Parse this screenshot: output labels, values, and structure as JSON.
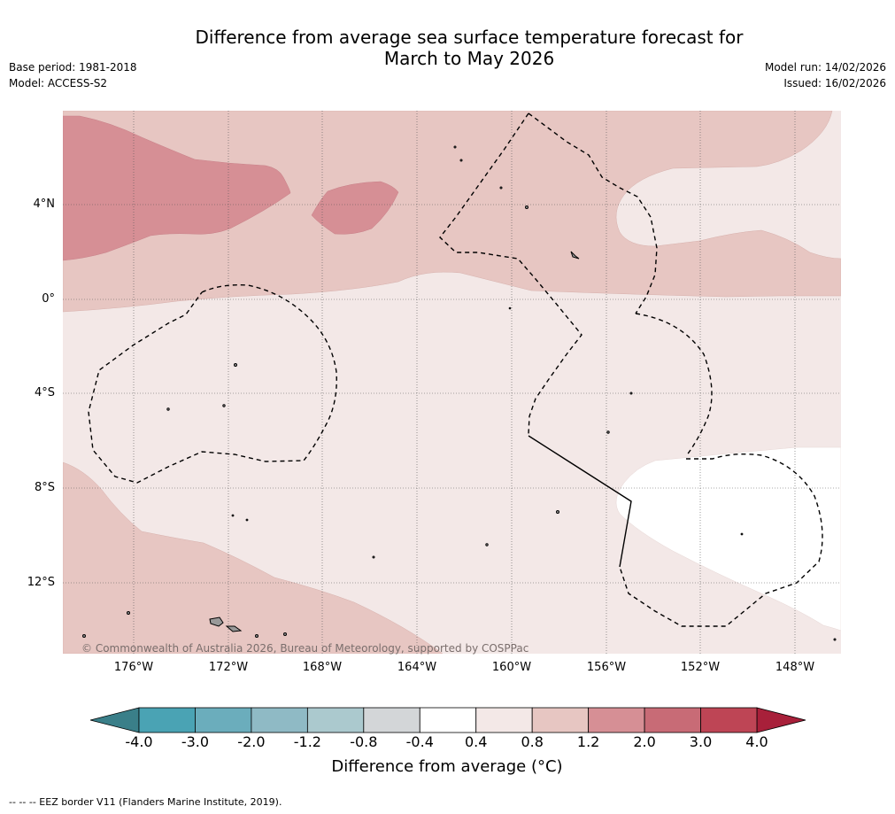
{
  "title_line1": "Difference from average sea surface temperature forecast for",
  "title_line2": "March to May 2026",
  "base_period": "Base period: 1981-2018",
  "model": "Model: ACCESS-S2",
  "model_run": "Model run: 14/02/2026",
  "issued": "Issued: 16/02/2026",
  "copyright": "© Commonwealth of Australia 2026, Bureau of Meteorology, supported by COSPPac",
  "lat_labels": [
    "4°N",
    "0°",
    "4°S",
    "8°S",
    "12°S"
  ],
  "lon_labels": [
    "176°W",
    "172°W",
    "168°W",
    "164°W",
    "160°W",
    "156°W",
    "152°W",
    "148°W"
  ],
  "colorbar": {
    "ticks": [
      "-4.0",
      "-3.0",
      "-2.0",
      "-1.2",
      "-0.8",
      "-0.4",
      "0.4",
      "0.8",
      "1.2",
      "2.0",
      "3.0",
      "4.0"
    ],
    "colors": [
      "#4aa3b4",
      "#6badbc",
      "#8fbac5",
      "#abc9ce",
      "#d3d6d8",
      "#ffffff",
      "#f3e8e7",
      "#e7c6c2",
      "#d68f95",
      "#c86b76",
      "#be4555"
    ],
    "under_color": "#3a7f89",
    "over_color": "#a8203a",
    "label": "Difference from average (°C)"
  },
  "footnote": "--  --  -- EEZ border V11 (Flanders Marine Institute, 2019)."
}
